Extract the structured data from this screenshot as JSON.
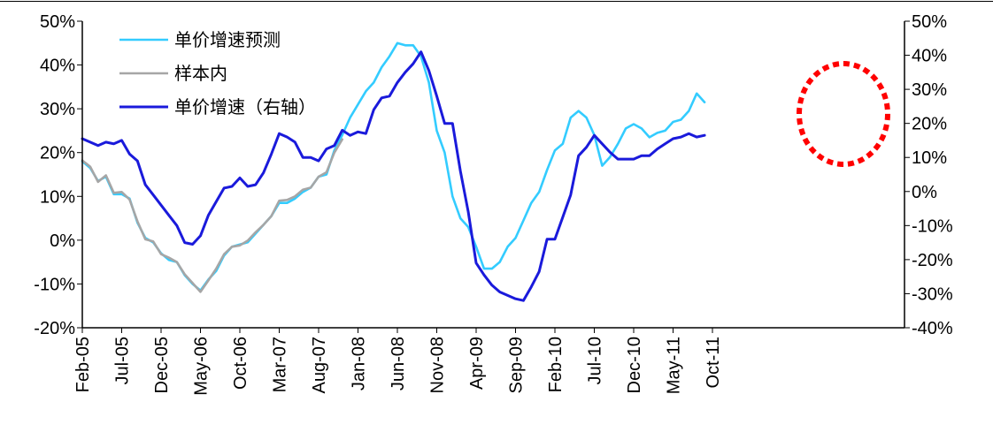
{
  "chart_data": {
    "type": "line",
    "colors": {
      "forecast": "#33ccff",
      "in_sample": "#a6a6a6",
      "actual": "#1a1adb",
      "highlight": "#ff0000",
      "axis": "#000000"
    },
    "legend": [
      {
        "key": "forecast",
        "label": "单价增速预测"
      },
      {
        "key": "in_sample",
        "label": "样本内"
      },
      {
        "key": "actual",
        "label": "单价增速（右轴）"
      }
    ],
    "x_tick_labels": [
      "Feb-05",
      "Jul-05",
      "Dec-05",
      "May-06",
      "Oct-06",
      "Mar-07",
      "Aug-07",
      "Jan-08",
      "Jun-08",
      "Nov-08",
      "Apr-09",
      "Sep-09",
      "Feb-10",
      "Jul-10",
      "Dec-10",
      "May-11",
      "Oct-11"
    ],
    "y_left": {
      "min": -20,
      "max": 50,
      "ticks": [
        -20,
        -10,
        0,
        10,
        20,
        30,
        40,
        50
      ],
      "tick_labels": [
        "-20%",
        "-10%",
        "0%",
        "10%",
        "20%",
        "30%",
        "40%",
        "50%"
      ]
    },
    "y_right": {
      "min": -40,
      "max": 50,
      "ticks": [
        -40,
        -30,
        -20,
        -10,
        0,
        10,
        20,
        30,
        40,
        50
      ],
      "tick_labels": [
        "-40%",
        "-30%",
        "-20%",
        "-10%",
        "0%",
        "10%",
        "20%",
        "30%",
        "40%",
        "50%"
      ]
    },
    "x_range": [
      0,
      83
    ],
    "series": [
      {
        "key": "forecast",
        "name": "单价增速预测",
        "axis": "left",
        "x_start": 0,
        "values": [
          18,
          16.5,
          13.5,
          14.5,
          10.5,
          10.5,
          9.5,
          4,
          0.5,
          -0.5,
          -3,
          -4.5,
          -5,
          -8,
          -10,
          -11.5,
          -9,
          -7,
          -3.5,
          -1.5,
          -1,
          -0.5,
          1.5,
          3.5,
          5.5,
          8.5,
          8.5,
          9.5,
          11,
          12,
          14.5,
          15,
          20.5,
          24,
          28,
          31,
          34,
          36,
          39.5,
          42,
          45,
          44.5,
          44.5,
          42,
          36,
          25,
          20,
          10,
          5,
          3,
          -1.5,
          -6.5,
          -6.5,
          -5,
          -1.5,
          0.5,
          4.5,
          8.5,
          11,
          16,
          20.5,
          22,
          28,
          29.5,
          28,
          24,
          17,
          19,
          22,
          25.5,
          26.5,
          25.5,
          23.5,
          24.5,
          25,
          27,
          27.5,
          29.5,
          33.5,
          31.5
        ]
      },
      {
        "key": "in_sample",
        "name": "样本内",
        "axis": "left",
        "x_start": 0,
        "values": [
          18.2,
          16.8,
          13.3,
          14.8,
          10.8,
          11,
          9.3,
          4.3,
          0.2,
          -0.3,
          -3.2,
          -4,
          -5,
          -7.8,
          -9.8,
          -11.8,
          -9.2,
          -6.5,
          -3.2,
          -1.5,
          -1.2,
          -0.1,
          1.8,
          3.5,
          5.5,
          9,
          9.2,
          10,
          11.5,
          12,
          14.5,
          15.5,
          20,
          23
        ]
      },
      {
        "key": "actual",
        "name": "单价增速（右轴）",
        "axis": "right",
        "x_start": 0,
        "values": [
          15.5,
          14.5,
          13.5,
          14.5,
          14,
          15,
          11,
          9,
          2,
          -1,
          -4,
          -7,
          -10,
          -15,
          -15.5,
          -13,
          -7,
          -3,
          1,
          1.5,
          4,
          1.5,
          2,
          5.5,
          11,
          17,
          16,
          14.5,
          10,
          10,
          9,
          12.5,
          13.5,
          18,
          16.5,
          17.5,
          17,
          24,
          27.5,
          28,
          32,
          35,
          37.5,
          41,
          35.5,
          28,
          20,
          20,
          6,
          -6,
          -21,
          -24.5,
          -27.5,
          -29.5,
          -30.5,
          -31.5,
          -32,
          -28,
          -23.5,
          -14,
          -14,
          -7.5,
          -1,
          10.5,
          13,
          16.5,
          14,
          11.5,
          9.5,
          9.5,
          9.5,
          10.5,
          10.5,
          12.5,
          14,
          15.5,
          16,
          17,
          16,
          16.5
        ]
      }
    ],
    "annotation": {
      "type": "dashed-ellipse",
      "note": "highlights forecast end region"
    }
  }
}
